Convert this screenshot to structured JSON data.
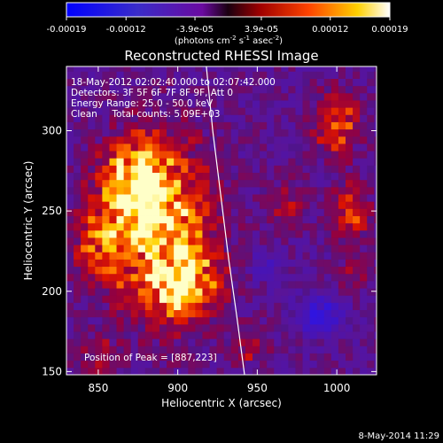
{
  "chart_data": {
    "type": "heatmap",
    "title": "Reconstructed RHESSI Image",
    "xlabel": "Heliocentric X (arcsec)",
    "ylabel": "Heliocentric Y (arcsec)",
    "xlim": [
      830,
      1025
    ],
    "ylim": [
      148,
      340
    ],
    "x_ticks": [
      850,
      900,
      950,
      1000
    ],
    "y_ticks": [
      150,
      200,
      250,
      300
    ],
    "colorbar": {
      "range": [
        -0.00019,
        0.00019
      ],
      "ticks": [
        -0.00019,
        -0.00012,
        -3.9e-05,
        3.9e-05,
        0.00012,
        0.00019
      ],
      "tick_labels": [
        "-0.00019",
        "-0.00012",
        "-3.9e-05",
        "3.9e-05",
        "0.00012",
        "0.00019"
      ],
      "unit_label_parts": [
        "(photons cm",
        "-2",
        " s",
        "-1",
        " asec",
        "-2",
        ")"
      ]
    },
    "info_lines": [
      "18-May-2012 02:02:40.000 to 02:07:42.000",
      "Detectors: 3F 5F 6F 7F 8F 9F, Att 0",
      "Energy Range: 25.0 - 50.0 keV",
      "Clean     Total counts: 5.09E+03"
    ],
    "peak_label": "Position of Peak = [887,223]",
    "peak": [
      887,
      223
    ],
    "limb_curve": [
      [
        918,
        340
      ],
      [
        922,
        300
      ],
      [
        927,
        260
      ],
      [
        932,
        220
      ],
      [
        937,
        185
      ],
      [
        942,
        148
      ]
    ],
    "sources": [
      {
        "x": 888,
        "y": 240,
        "sx": 22,
        "sy": 36,
        "amp": 1.0
      },
      {
        "x": 872,
        "y": 270,
        "sx": 14,
        "sy": 16,
        "amp": 0.7
      },
      {
        "x": 905,
        "y": 205,
        "sx": 16,
        "sy": 14,
        "amp": 0.7
      },
      {
        "x": 850,
        "y": 230,
        "sx": 10,
        "sy": 18,
        "amp": 0.5
      },
      {
        "x": 1000,
        "y": 305,
        "sx": 10,
        "sy": 14,
        "amp": 0.6
      },
      {
        "x": 1008,
        "y": 250,
        "sx": 8,
        "sy": 12,
        "amp": 0.55
      },
      {
        "x": 968,
        "y": 255,
        "sx": 8,
        "sy": 10,
        "amp": 0.3
      },
      {
        "x": 945,
        "y": 165,
        "sx": 8,
        "sy": 8,
        "amp": 0.35
      },
      {
        "x": 850,
        "y": 160,
        "sx": 8,
        "sy": 8,
        "amp": 0.3
      },
      {
        "x": 1012,
        "y": 210,
        "sx": 6,
        "sy": 8,
        "amp": 0.3
      }
    ],
    "negative_regions": [
      {
        "x": 990,
        "y": 185,
        "sx": 10,
        "sy": 8,
        "amp": 0.6
      },
      {
        "x": 955,
        "y": 215,
        "sx": 8,
        "sy": 6,
        "amp": 0.3
      }
    ]
  },
  "footer": {
    "timestamp": "8-May-2014 11:29"
  }
}
